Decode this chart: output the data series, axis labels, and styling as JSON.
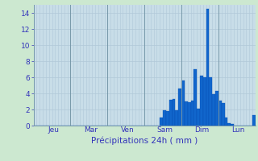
{
  "title": "Précipitations 24h ( mm )",
  "ylim": [
    0,
    15
  ],
  "yticks": [
    0,
    2,
    4,
    6,
    8,
    10,
    12,
    14
  ],
  "outer_bg": "#cce8d0",
  "plot_bg_color": "#c8dde8",
  "bar_color": "#1166cc",
  "bar_edge_color": "#0044aa",
  "grid_color": "#b0c8d8",
  "vline_color": "#7799aa",
  "day_labels": [
    "Jeu",
    "Mar",
    "Ven",
    "Sam",
    "Dim",
    "Lun"
  ],
  "day_vline_positions": [
    0,
    12,
    24,
    36,
    48,
    60
  ],
  "n_bars": 72,
  "values": [
    0,
    0,
    0,
    0,
    0,
    0,
    0,
    0,
    0,
    0,
    0,
    0,
    0,
    0,
    0,
    0,
    0,
    0,
    0,
    0,
    0,
    0,
    0,
    0,
    0,
    0,
    0,
    0,
    0,
    0,
    0,
    0,
    0,
    0,
    0,
    0,
    0,
    0,
    0,
    0,
    0,
    1.0,
    1.9,
    1.8,
    3.2,
    3.3,
    1.9,
    4.6,
    5.6,
    3.0,
    2.9,
    3.1,
    7.0,
    2.1,
    6.2,
    6.0,
    14.5,
    6.0,
    3.9,
    4.3,
    3.1,
    2.8,
    1.0,
    0.35,
    0.2,
    0,
    0,
    0,
    0,
    0,
    0,
    1.3
  ],
  "title_color": "#3333bb",
  "tick_color": "#3333bb",
  "title_fontsize": 7.5,
  "tick_fontsize": 6.5,
  "axis_label_y_color": "#3333bb"
}
